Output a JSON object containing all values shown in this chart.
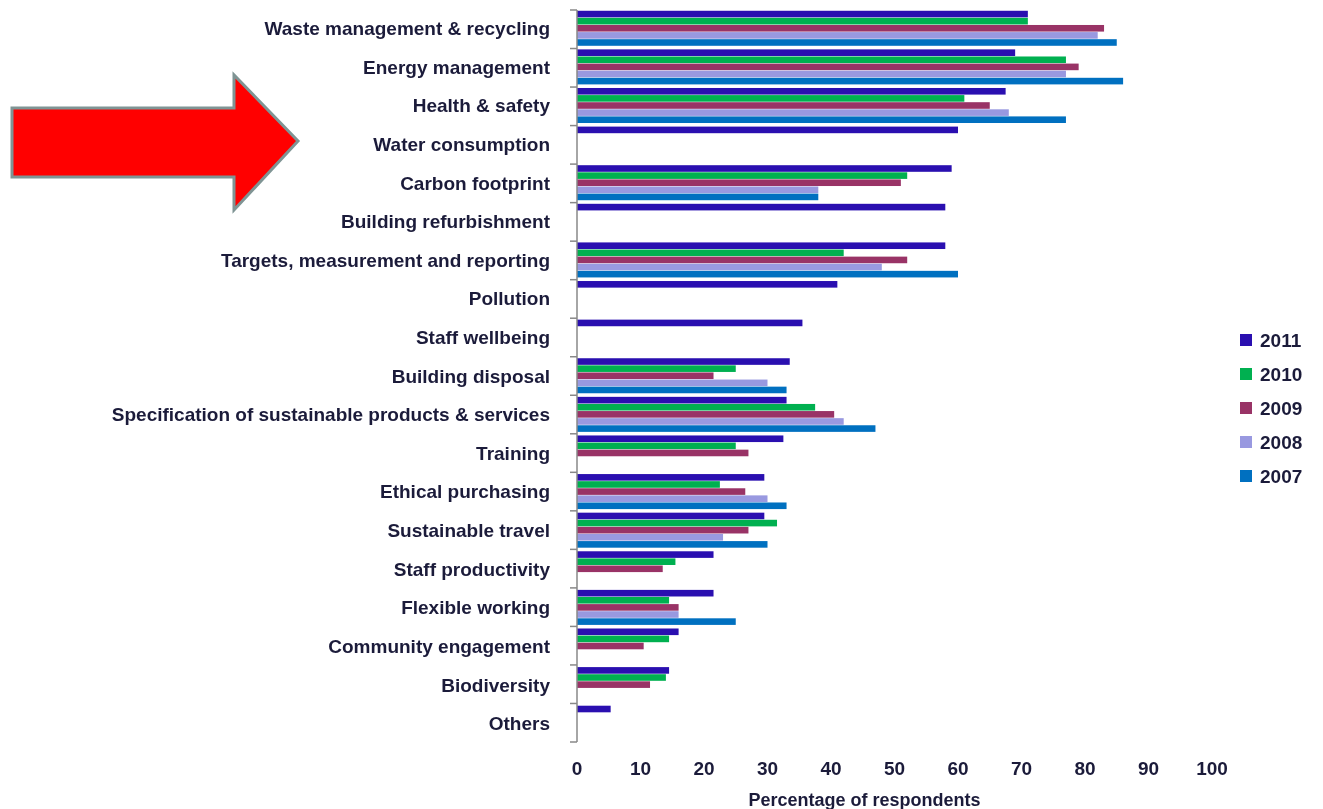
{
  "chart_data": {
    "type": "bar",
    "orientation": "horizontal",
    "categories": [
      "Waste management & recycling",
      "Energy management",
      "Health & safety",
      "Water consumption",
      "Carbon footprint",
      "Building refurbishment",
      "Targets, measurement and reporting",
      "Pollution",
      "Staff wellbeing",
      "Building disposal",
      "Specification of sustainable products & services",
      "Training",
      "Ethical purchasing",
      "Sustainable travel",
      "Staff productivity",
      "Flexible working",
      "Community engagement",
      "Biodiversity",
      "Others"
    ],
    "series": [
      {
        "name": "2011",
        "color": "#2a0fb0",
        "values": [
          71,
          69,
          67.5,
          60,
          59,
          58,
          58,
          41,
          35.5,
          33.5,
          33,
          32.5,
          29.5,
          29.5,
          21.5,
          21.5,
          16,
          14.5,
          5.3
        ]
      },
      {
        "name": "2010",
        "color": "#00b050",
        "values": [
          71,
          77,
          61,
          null,
          52,
          null,
          42,
          null,
          null,
          25,
          37.5,
          25,
          22.5,
          31.5,
          15.5,
          14.5,
          14.5,
          14,
          null
        ]
      },
      {
        "name": "2009",
        "color": "#993366",
        "values": [
          83,
          79,
          65,
          null,
          51,
          null,
          52,
          null,
          null,
          21.5,
          40.5,
          27,
          26.5,
          27,
          13.5,
          16,
          10.5,
          11.5,
          null
        ]
      },
      {
        "name": "2008",
        "color": "#9999e0",
        "values": [
          82,
          77,
          68,
          null,
          38,
          null,
          48,
          null,
          null,
          30,
          42,
          null,
          30,
          23,
          null,
          16,
          null,
          null,
          null
        ]
      },
      {
        "name": "2007",
        "color": "#0070c0",
        "values": [
          85,
          86,
          77,
          null,
          38,
          null,
          60,
          null,
          null,
          33,
          47,
          null,
          33,
          30,
          null,
          25,
          null,
          null,
          null
        ]
      }
    ],
    "xlabel": "Percentage of respondents",
    "xlim": [
      0,
      100
    ],
    "xticks": [
      0,
      10,
      20,
      30,
      40,
      50,
      60,
      70,
      80,
      90,
      100
    ],
    "grid": false,
    "legend": "right"
  }
}
